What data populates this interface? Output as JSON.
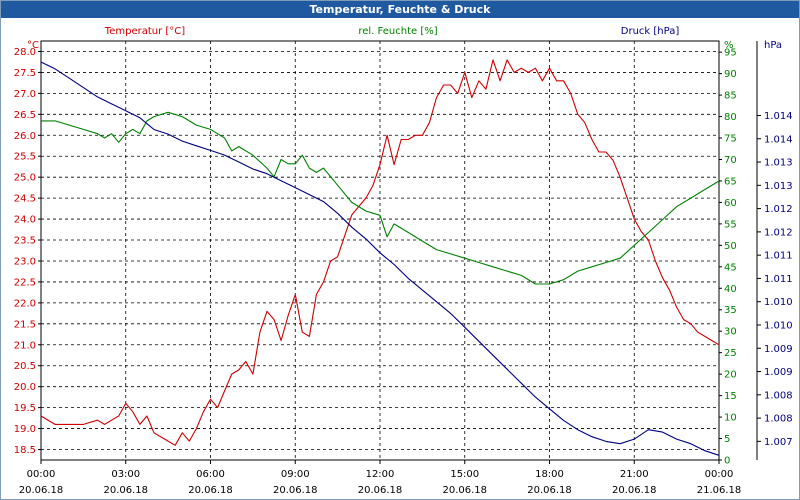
{
  "window": {
    "title": "Temperatur, Feuchte & Druck"
  },
  "chart_data": {
    "type": "line",
    "title": "Temperatur, Feuchte & Druck",
    "x_ticks": [
      {
        "time": "00:00",
        "date": "20.06.18"
      },
      {
        "time": "03:00",
        "date": "20.06.18"
      },
      {
        "time": "06:00",
        "date": "20.06.18"
      },
      {
        "time": "09:00",
        "date": "20.06.18"
      },
      {
        "time": "12:00",
        "date": "20.06.18"
      },
      {
        "time": "15:00",
        "date": "20.06.18"
      },
      {
        "time": "18:00",
        "date": "20.06.18"
      },
      {
        "time": "21:00",
        "date": "20.06.18"
      },
      {
        "time": "00:00",
        "date": "21.06.18"
      }
    ],
    "grid": true,
    "axes": {
      "left": {
        "unit": "°C",
        "color": "#cc0000",
        "ylim": [
          18.25,
          28.25
        ],
        "ticks": [
          "18.5",
          "19.0",
          "19.5",
          "20.0",
          "20.5",
          "21.0",
          "21.5",
          "22.0",
          "22.5",
          "23.0",
          "23.5",
          "24.0",
          "24.5",
          "25.0",
          "25.5",
          "26.0",
          "26.5",
          "27.0",
          "27.5",
          "28.0"
        ]
      },
      "middle": {
        "unit": "%",
        "color": "#008000",
        "ylim": [
          0,
          97.6
        ],
        "ticks": [
          "0",
          "5",
          "10",
          "15",
          "20",
          "25",
          "30",
          "35",
          "40",
          "45",
          "50",
          "55",
          "60",
          "65",
          "70",
          "75",
          "80",
          "85",
          "90",
          "95"
        ]
      },
      "right": {
        "unit": "hPa",
        "color": "#000080",
        "ylim": [
          1006.6,
          1015.6
        ],
        "ticks": [
          "1.007",
          "1.008",
          "1.008",
          "1.009",
          "1.009",
          "1.010",
          "1.010",
          "1.011",
          "1.011",
          "1.012",
          "1.012",
          "1.013",
          "1.013",
          "1.014",
          "1.014"
        ]
      }
    },
    "series": [
      {
        "name": "Temperatur [°C]",
        "color": "#cc0000",
        "axis": "left",
        "x_hours": [
          0,
          0.5,
          1,
          1.5,
          2,
          2.25,
          2.5,
          2.75,
          3,
          3.25,
          3.5,
          3.75,
          4,
          4.25,
          4.5,
          4.75,
          5,
          5.25,
          5.5,
          5.75,
          6,
          6.25,
          6.5,
          6.75,
          7,
          7.25,
          7.5,
          7.75,
          8,
          8.25,
          8.5,
          8.75,
          9,
          9.25,
          9.5,
          9.75,
          10,
          10.25,
          10.5,
          10.75,
          11,
          11.25,
          11.5,
          11.75,
          12,
          12.25,
          12.5,
          12.75,
          13,
          13.25,
          13.5,
          13.75,
          14,
          14.25,
          14.5,
          14.75,
          15,
          15.25,
          15.5,
          15.75,
          16,
          16.25,
          16.5,
          16.75,
          17,
          17.25,
          17.5,
          17.75,
          18,
          18.25,
          18.5,
          18.75,
          19,
          19.25,
          19.5,
          19.75,
          20,
          20.25,
          20.5,
          20.75,
          21,
          21.25,
          21.5,
          21.75,
          22,
          22.25,
          22.5,
          22.75,
          23,
          23.25,
          23.5,
          23.75,
          24
        ],
        "values": [
          19.3,
          19.1,
          19.1,
          19.1,
          19.2,
          19.1,
          19.2,
          19.3,
          19.6,
          19.4,
          19.1,
          19.3,
          18.9,
          18.8,
          18.7,
          18.6,
          18.9,
          18.7,
          19.0,
          19.4,
          19.7,
          19.5,
          19.9,
          20.3,
          20.4,
          20.6,
          20.3,
          21.3,
          21.8,
          21.6,
          21.1,
          21.7,
          22.2,
          21.3,
          21.2,
          22.2,
          22.5,
          23.0,
          23.1,
          23.6,
          24.1,
          24.3,
          24.5,
          24.8,
          25.3,
          26.0,
          25.3,
          25.9,
          25.9,
          26.0,
          26.0,
          26.3,
          26.9,
          27.2,
          27.2,
          27.0,
          27.5,
          26.9,
          27.3,
          27.1,
          27.8,
          27.3,
          27.8,
          27.5,
          27.6,
          27.5,
          27.6,
          27.3,
          27.6,
          27.3,
          27.3,
          27.0,
          26.5,
          26.3,
          25.9,
          25.6,
          25.6,
          25.4,
          25.0,
          24.5,
          24.0,
          23.7,
          23.5,
          23.0,
          22.6,
          22.3,
          21.9,
          21.6,
          21.5,
          21.3,
          21.2,
          21.1,
          21.0
        ],
        "label_text": "Temperatur [°C]"
      },
      {
        "name": "rel. Feuchte [%]",
        "color": "#008000",
        "axis": "middle",
        "x_hours": [
          0,
          0.5,
          1,
          1.5,
          2,
          2.25,
          2.5,
          2.75,
          3,
          3.25,
          3.5,
          3.75,
          4,
          4.5,
          5,
          5.5,
          6,
          6.25,
          6.5,
          6.75,
          7,
          7.5,
          8,
          8.25,
          8.5,
          8.75,
          9,
          9.25,
          9.5,
          9.75,
          10,
          10.5,
          11,
          11.5,
          12,
          12.25,
          12.5,
          13,
          13.5,
          14,
          14.5,
          15,
          15.5,
          16,
          16.5,
          17,
          17.5,
          18,
          18.5,
          19,
          19.5,
          20,
          20.5,
          21,
          21.5,
          22,
          22.5,
          23,
          23.5,
          24
        ],
        "values": [
          79,
          79,
          78,
          77,
          76,
          75,
          76,
          74,
          76,
          77,
          76,
          79,
          80,
          81,
          80,
          78,
          77,
          76,
          75,
          72,
          73,
          71,
          68,
          66,
          70,
          69,
          69,
          71,
          68,
          67,
          68,
          64,
          60,
          58,
          57,
          52,
          55,
          53,
          51,
          49,
          48,
          47,
          46,
          45,
          44,
          43,
          41,
          41,
          42,
          44,
          45,
          46,
          47,
          50,
          53,
          56,
          59,
          61,
          63,
          65
        ],
        "label_text": "rel. Feuchte [%]"
      },
      {
        "name": "Druck [hPa]",
        "color": "#000080",
        "axis": "right",
        "x_hours": [
          0,
          0.5,
          1,
          1.5,
          2,
          2.5,
          3,
          3.5,
          4,
          4.5,
          5,
          5.5,
          6,
          6.5,
          7,
          7.5,
          8,
          8.5,
          9,
          9.5,
          10,
          10.5,
          11,
          11.5,
          12,
          12.5,
          13,
          13.5,
          14,
          14.5,
          15,
          15.5,
          16,
          16.5,
          17,
          17.5,
          18,
          18.5,
          19,
          19.5,
          20,
          20.5,
          21,
          21.5,
          22,
          22.5,
          23,
          23.5,
          24
        ],
        "values": [
          1015.15,
          1015.0,
          1014.8,
          1014.6,
          1014.4,
          1014.25,
          1014.1,
          1013.95,
          1013.7,
          1013.6,
          1013.45,
          1013.35,
          1013.25,
          1013.15,
          1013.0,
          1012.85,
          1012.75,
          1012.6,
          1012.45,
          1012.3,
          1012.15,
          1011.9,
          1011.6,
          1011.35,
          1011.05,
          1010.8,
          1010.5,
          1010.25,
          1010.0,
          1009.75,
          1009.45,
          1009.15,
          1008.85,
          1008.55,
          1008.25,
          1007.95,
          1007.7,
          1007.45,
          1007.25,
          1007.1,
          1007.0,
          1006.95,
          1007.05,
          1007.25,
          1007.2,
          1007.05,
          1006.95,
          1006.8,
          1006.7
        ],
        "label_text": "Druck [hPa]"
      }
    ]
  }
}
